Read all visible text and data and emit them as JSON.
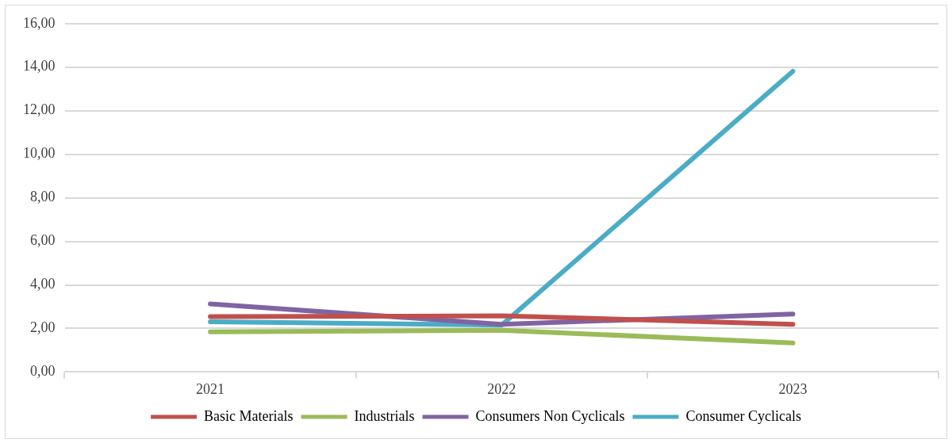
{
  "chart_data": {
    "type": "line",
    "categories": [
      "2021",
      "2022",
      "2023"
    ],
    "series": [
      {
        "name": "Basic Materials",
        "color": "#c0504d",
        "values": [
          2.54,
          2.58,
          2.19
        ]
      },
      {
        "name": "Industrials",
        "color": "#9bbb59",
        "values": [
          1.84,
          1.92,
          1.33
        ]
      },
      {
        "name": "Consumers Non Cyclicals",
        "color": "#8064a2",
        "values": [
          3.13,
          2.19,
          2.66
        ]
      },
      {
        "name": "Consumer Cyclicals",
        "color": "#4bacc6",
        "values": [
          2.31,
          2.15,
          13.81
        ]
      }
    ],
    "ylim": [
      0,
      16
    ],
    "yticks": [
      {
        "value": 0,
        "label": "0,00"
      },
      {
        "value": 2,
        "label": "2,00"
      },
      {
        "value": 4,
        "label": "4,00"
      },
      {
        "value": 6,
        "label": "6,00"
      },
      {
        "value": 8,
        "label": "8,00"
      },
      {
        "value": 10,
        "label": "10,00"
      },
      {
        "value": 12,
        "label": "12,00"
      },
      {
        "value": 14,
        "label": "14,00"
      },
      {
        "value": 16,
        "label": "16,00"
      }
    ],
    "grid": "y",
    "legend": "bottom",
    "marker": "none",
    "line_style": "solid"
  }
}
